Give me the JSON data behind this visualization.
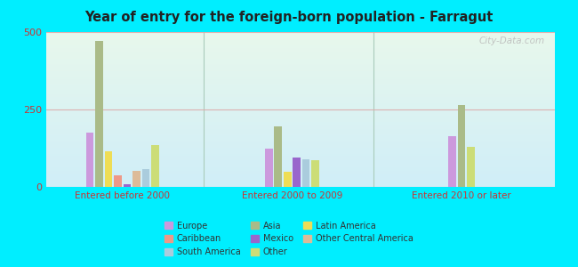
{
  "title": "Year of entry for the foreign-born population - Farragut",
  "groups": [
    "Entered before 2000",
    "Entered 2000 to 2009",
    "Entered 2010 or later"
  ],
  "categories": [
    "Europe",
    "Asia",
    "Latin America",
    "Caribbean",
    "Mexico",
    "Other Central America",
    "South America",
    "Other"
  ],
  "colors": {
    "Europe": "#cc99dd",
    "Asia": "#aabb88",
    "Latin America": "#eedd55",
    "Caribbean": "#ee9988",
    "Mexico": "#9966cc",
    "Other Central America": "#ddbb99",
    "South America": "#aaccdd",
    "Other": "#ccdd77"
  },
  "data": {
    "Entered before 2000": {
      "Europe": 175,
      "Asia": 470,
      "Latin America": 115,
      "Caribbean": 38,
      "Mexico": 8,
      "Other Central America": 52,
      "South America": 58,
      "Other": 135
    },
    "Entered 2000 to 2009": {
      "Europe": 125,
      "Asia": 195,
      "Latin America": 50,
      "Caribbean": 0,
      "Mexico": 95,
      "Other Central America": 0,
      "South America": 90,
      "Other": 85
    },
    "Entered 2010 or later": {
      "Europe": 165,
      "Asia": 265,
      "Latin America": 0,
      "Caribbean": 0,
      "Mexico": 0,
      "Other Central America": 0,
      "South America": 0,
      "Other": 130
    }
  },
  "ylim": [
    0,
    500
  ],
  "yticks": [
    0,
    250,
    500
  ],
  "background_color": "#00eeff",
  "plot_bg_color": "#e8f5ee",
  "title_color": "#222222",
  "axis_label_color": "#cc3333",
  "grid_color": "#ddaaaa",
  "watermark": "City-Data.com",
  "legend_items": [
    [
      "Europe",
      "#cc99dd"
    ],
    [
      "Caribbean",
      "#ee9988"
    ],
    [
      "South America",
      "#aaccdd"
    ],
    [
      "Asia",
      "#aabb88"
    ],
    [
      "Mexico",
      "#9966cc"
    ],
    [
      "Other",
      "#ccdd77"
    ],
    [
      "Latin America",
      "#eedd55"
    ],
    [
      "Other Central America",
      "#ddbb99"
    ]
  ]
}
